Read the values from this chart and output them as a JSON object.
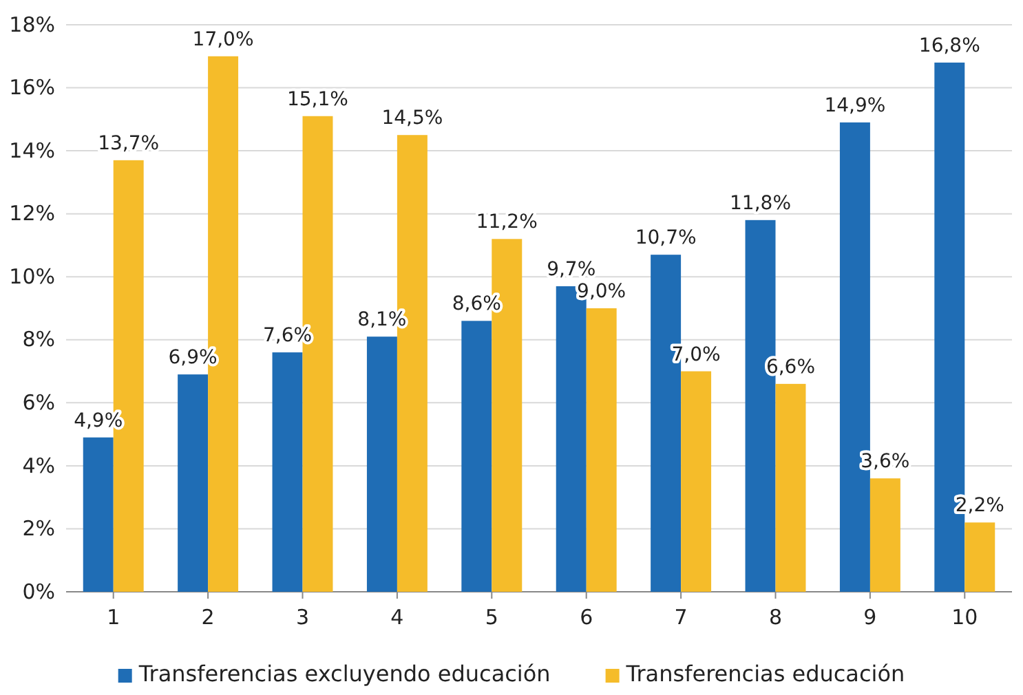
{
  "chart_data": {
    "type": "bar",
    "categories": [
      "1",
      "2",
      "3",
      "4",
      "5",
      "6",
      "7",
      "8",
      "9",
      "10"
    ],
    "series": [
      {
        "name": "Transferencias excluyendo educación",
        "color": "#1f6db5",
        "values": [
          4.9,
          6.9,
          7.6,
          8.1,
          8.6,
          9.7,
          10.7,
          11.8,
          14.9,
          16.8
        ],
        "value_labels": [
          "4,9%",
          "6,9%",
          "7,6%",
          "8,1%",
          "8,6%",
          "9,7%",
          "10,7%",
          "11,8%",
          "14,9%",
          "16,8%"
        ]
      },
      {
        "name": "Transferencias educación",
        "color": "#f5bc2a",
        "values": [
          13.7,
          17.0,
          15.1,
          14.5,
          11.2,
          9.0,
          7.0,
          6.6,
          3.6,
          2.2
        ],
        "value_labels": [
          "13,7%",
          "17,0%",
          "15,1%",
          "14,5%",
          "11,2%",
          "9,0%",
          "7,0%",
          "6,6%",
          "3,6%",
          "2,2%"
        ]
      }
    ],
    "ylim": [
      0,
      18
    ],
    "yticks": [
      {
        "value": 0,
        "label": "0%"
      },
      {
        "value": 2,
        "label": "2%"
      },
      {
        "value": 4,
        "label": "4%"
      },
      {
        "value": 6,
        "label": "6%"
      },
      {
        "value": 8,
        "label": "8%"
      },
      {
        "value": 10,
        "label": "10%"
      },
      {
        "value": 12,
        "label": "12%"
      },
      {
        "value": 14,
        "label": "14%"
      },
      {
        "value": 16,
        "label": "16%"
      },
      {
        "value": 18,
        "label": "18%"
      }
    ],
    "grid": "y",
    "legend": "bottom"
  }
}
